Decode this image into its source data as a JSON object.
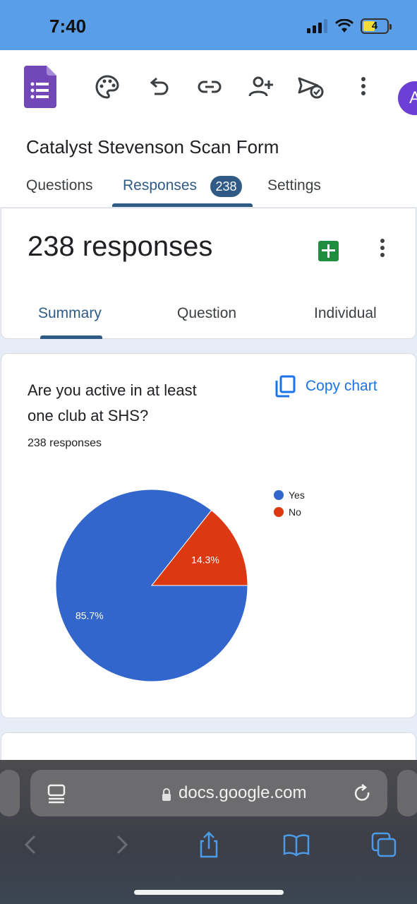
{
  "status_bar": {
    "time": "7:40",
    "battery": "4",
    "icons": [
      "signal-icon",
      "wifi-icon",
      "battery-icon"
    ]
  },
  "app": {
    "toolbar_icons": [
      "forms-logo-icon",
      "palette-icon",
      "undo-icon",
      "link-icon",
      "add-person-icon",
      "send-icon",
      "more-vert-icon"
    ],
    "avatar_initial": "A",
    "form_title": "Catalyst Stevenson Scan Form",
    "tabs": [
      {
        "label": "Questions",
        "active": false
      },
      {
        "label": "Responses",
        "active": true,
        "badge": "238"
      },
      {
        "label": "Settings",
        "active": false
      }
    ]
  },
  "summary_card": {
    "count_text": "238 responses",
    "subtabs": [
      {
        "label": "Summary",
        "active": true
      },
      {
        "label": "Question",
        "active": false
      },
      {
        "label": "Individual",
        "active": false
      }
    ]
  },
  "question_card": {
    "question_line1": "Are you active in at least",
    "question_line2": "one club at SHS?",
    "copy_chart_label": "Copy chart",
    "responses_text": "238 responses"
  },
  "chart_data": {
    "type": "pie",
    "slices": [
      {
        "label": "Yes",
        "value": 85.7,
        "color": "#3366cc",
        "data_label": "85.7%"
      },
      {
        "label": "No",
        "value": 14.3,
        "color": "#dc3912",
        "data_label": "14.3%"
      }
    ],
    "legend_position": "top-right"
  },
  "browser": {
    "url": "docs.google.com",
    "nav_icons": [
      "back-icon",
      "forward-icon",
      "share-icon",
      "bookmarks-icon",
      "tabs-icon"
    ]
  },
  "colors": {
    "accent": "#2f5b86",
    "link_blue": "#1a73e8",
    "forms_purple": "#673ab7",
    "status_bar": "#5b9ee8"
  }
}
